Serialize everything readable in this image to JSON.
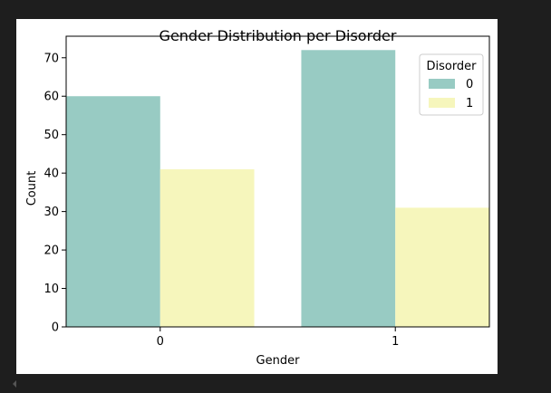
{
  "chart_data": {
    "type": "bar",
    "title": "Gender Distribution per Disorder",
    "xlabel": "Gender",
    "ylabel": "Count",
    "categories": [
      "0",
      "1"
    ],
    "series": [
      {
        "name": "0",
        "values": [
          60,
          72
        ],
        "color": "#98cbc3"
      },
      {
        "name": "1",
        "values": [
          41,
          31
        ],
        "color": "#f6f6bc"
      }
    ],
    "ylim": [
      0,
      75.6
    ],
    "yticks": [
      0,
      10,
      20,
      30,
      40,
      50,
      60,
      70
    ],
    "legend": {
      "title": "Disorder",
      "position": "top-right"
    },
    "grid": false
  },
  "colors": {
    "page_background": "#1e1e1e",
    "figure_background": "#ffffff",
    "axis": "#000000"
  }
}
